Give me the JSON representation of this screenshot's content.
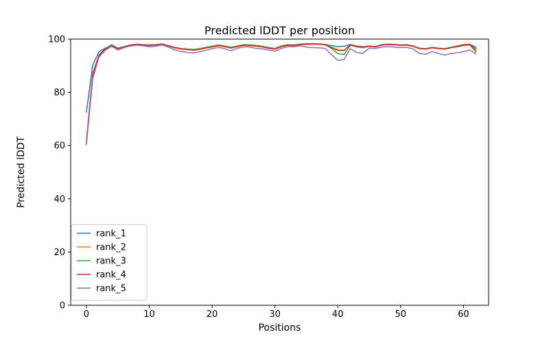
{
  "chart_data": {
    "type": "line",
    "title": "Predicted lDDT per position",
    "xlabel": "Positions",
    "ylabel": "Predicted lDDT",
    "xlim": [
      -2.5,
      64.0
    ],
    "ylim": [
      0,
      100
    ],
    "xticks": [
      0,
      10,
      20,
      30,
      40,
      50,
      60
    ],
    "yticks": [
      0,
      20,
      40,
      60,
      80,
      100
    ],
    "grid": false,
    "legend_position": "lower left",
    "x": [
      0,
      1,
      2,
      3,
      4,
      5,
      6,
      7,
      8,
      9,
      10,
      11,
      12,
      13,
      14,
      15,
      16,
      17,
      18,
      19,
      20,
      21,
      22,
      23,
      24,
      25,
      26,
      27,
      28,
      29,
      30,
      31,
      32,
      33,
      34,
      35,
      36,
      37,
      38,
      39,
      40,
      41,
      42,
      43,
      44,
      45,
      46,
      47,
      48,
      49,
      50,
      51,
      52,
      53,
      54,
      55,
      56,
      57,
      58,
      59,
      60,
      61,
      62
    ],
    "series": [
      {
        "name": "rank_1",
        "color": "#1f77b4",
        "values": [
          72.5,
          90.3,
          95.2,
          96.6,
          97.6,
          96.5,
          97.2,
          97.8,
          98.1,
          97.9,
          97.8,
          97.9,
          98.2,
          97.6,
          96.9,
          96.5,
          96.2,
          96.0,
          96.3,
          96.8,
          97.2,
          97.7,
          97.3,
          96.8,
          97.3,
          97.8,
          97.7,
          97.5,
          97.2,
          96.7,
          96.4,
          97.3,
          97.8,
          97.7,
          98.0,
          98.2,
          98.3,
          98.2,
          98.0,
          97.5,
          97.2,
          97.3,
          98.0,
          97.4,
          97.1,
          97.4,
          97.2,
          97.9,
          98.1,
          98.0,
          97.8,
          97.9,
          97.4,
          96.6,
          96.4,
          96.9,
          96.6,
          96.4,
          96.9,
          97.4,
          97.9,
          98.1,
          96.9
        ]
      },
      {
        "name": "rank_2",
        "color": "#ff7f0e",
        "values": [
          61.2,
          85.8,
          93.7,
          96.2,
          97.4,
          96.3,
          97.0,
          97.6,
          97.9,
          97.7,
          97.5,
          97.7,
          98.0,
          97.4,
          96.7,
          96.3,
          96.0,
          95.8,
          96.1,
          96.6,
          97.0,
          97.5,
          97.1,
          96.6,
          97.1,
          97.6,
          97.5,
          97.3,
          97.0,
          96.5,
          96.2,
          97.1,
          97.6,
          97.5,
          97.8,
          98.0,
          98.1,
          98.0,
          97.8,
          96.9,
          96.0,
          95.8,
          97.8,
          97.2,
          96.9,
          97.2,
          97.0,
          97.7,
          97.9,
          97.8,
          97.6,
          97.7,
          97.2,
          96.4,
          96.2,
          96.7,
          96.4,
          96.2,
          96.7,
          97.2,
          97.7,
          97.9,
          95.6
        ]
      },
      {
        "name": "rank_3",
        "color": "#2ca02c",
        "values": [
          60.4,
          85.4,
          93.5,
          96.3,
          97.9,
          96.6,
          97.1,
          97.7,
          98.0,
          97.8,
          97.7,
          97.8,
          98.1,
          97.5,
          96.8,
          96.4,
          96.3,
          96.1,
          96.4,
          96.9,
          97.3,
          97.8,
          97.4,
          96.9,
          97.4,
          97.9,
          97.8,
          97.6,
          97.3,
          96.8,
          96.5,
          97.4,
          97.9,
          97.8,
          98.1,
          98.3,
          98.2,
          98.1,
          97.9,
          96.5,
          94.5,
          94.2,
          97.7,
          97.1,
          96.8,
          97.3,
          97.1,
          97.8,
          98.0,
          97.9,
          97.7,
          97.8,
          97.3,
          96.5,
          96.3,
          96.8,
          96.5,
          96.3,
          96.8,
          97.1,
          97.6,
          97.8,
          95.1
        ]
      },
      {
        "name": "rank_4",
        "color": "#d62728",
        "values": [
          61.8,
          87.0,
          94.0,
          96.4,
          97.5,
          96.4,
          97.1,
          97.7,
          98.0,
          97.8,
          97.6,
          97.8,
          98.1,
          97.5,
          96.8,
          96.4,
          96.1,
          95.9,
          96.2,
          96.7,
          97.1,
          97.6,
          97.2,
          96.7,
          97.2,
          97.7,
          97.6,
          97.4,
          97.1,
          96.6,
          96.3,
          97.2,
          97.7,
          97.6,
          97.9,
          98.1,
          98.2,
          98.1,
          97.9,
          96.8,
          95.8,
          95.7,
          97.9,
          97.3,
          97.0,
          97.3,
          97.1,
          97.8,
          98.0,
          97.9,
          97.7,
          97.8,
          97.3,
          96.5,
          96.3,
          96.8,
          96.5,
          96.3,
          96.8,
          97.3,
          97.8,
          98.0,
          96.2
        ]
      },
      {
        "name": "rank_5",
        "color": "#9467bd",
        "values": [
          61.0,
          85.2,
          93.2,
          95.8,
          97.3,
          95.9,
          96.8,
          97.4,
          97.7,
          97.5,
          97.1,
          97.3,
          97.8,
          97.0,
          96.0,
          95.4,
          95.0,
          94.8,
          95.2,
          95.8,
          96.4,
          96.9,
          96.4,
          95.6,
          96.5,
          97.1,
          97.0,
          96.5,
          96.3,
          95.9,
          95.5,
          96.5,
          97.2,
          97.1,
          97.5,
          97.0,
          96.8,
          96.7,
          96.5,
          94.2,
          92.0,
          92.3,
          96.4,
          95.0,
          94.6,
          96.6,
          96.5,
          97.0,
          97.2,
          97.0,
          96.8,
          96.9,
          96.3,
          94.6,
          94.3,
          95.3,
          94.6,
          94.0,
          94.6,
          94.9,
          95.3,
          95.9,
          94.4
        ]
      }
    ]
  },
  "colors": {
    "background": "#ffffff",
    "text": "#000000",
    "spine": "#000000",
    "legend_border": "#cccccc",
    "legend_fill": "#ffffff"
  }
}
